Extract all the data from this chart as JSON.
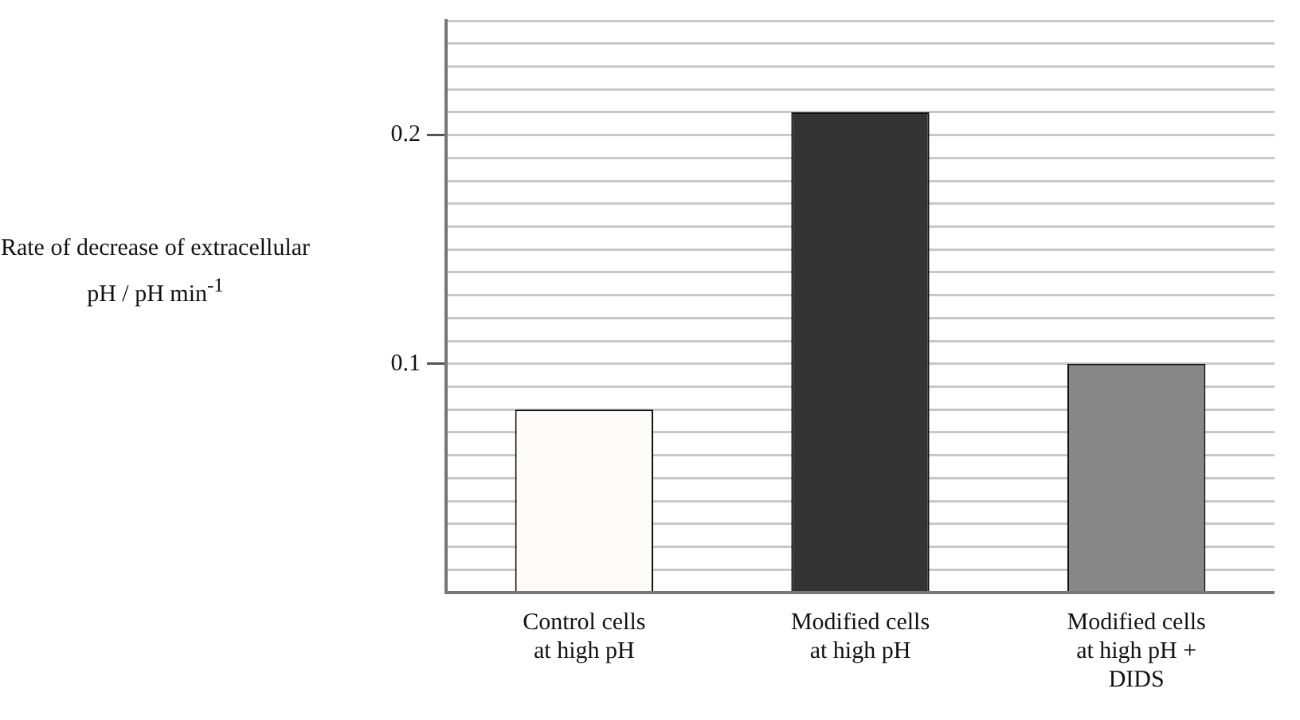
{
  "chart_data": {
    "type": "bar",
    "ylabel": "Rate of decrease of extracellular pH / pH min$^{-1}$",
    "categories": [
      "Control cells at high pH",
      "Modified cells at high pH",
      "Modified cells at high pH + DIDS"
    ],
    "values": [
      0.08,
      0.21,
      0.1
    ],
    "colors": [
      "#fdfcfb",
      "#333333",
      "#878787"
    ],
    "ylim": [
      0,
      0.25
    ],
    "yticks": [
      {
        "value": 0,
        "label": null
      },
      {
        "value": 0.01,
        "label": null
      },
      {
        "value": 0.02,
        "label": null
      },
      {
        "value": 0.03,
        "label": null
      },
      {
        "value": 0.04,
        "label": null
      },
      {
        "value": 0.05,
        "label": null
      },
      {
        "value": 0.06,
        "label": null
      },
      {
        "value": 0.07,
        "label": null
      },
      {
        "value": 0.08,
        "label": null
      },
      {
        "value": 0.09,
        "label": null
      },
      {
        "value": 0.1,
        "label": "0.1"
      },
      {
        "value": 0.11,
        "label": null
      },
      {
        "value": 0.12,
        "label": null
      },
      {
        "value": 0.13,
        "label": null
      },
      {
        "value": 0.14,
        "label": null
      },
      {
        "value": 0.15,
        "label": null
      },
      {
        "value": 0.16,
        "label": null
      },
      {
        "value": 0.17,
        "label": null
      },
      {
        "value": 0.18,
        "label": null
      },
      {
        "value": 0.19,
        "label": null
      },
      {
        "value": 0.2,
        "label": "0.2"
      },
      {
        "value": 0.21,
        "label": null
      },
      {
        "value": 0.22,
        "label": null
      },
      {
        "value": 0.23,
        "label": null
      },
      {
        "value": 0.24,
        "label": null
      },
      {
        "value": 0.25,
        "label": null
      }
    ],
    "grid": "y",
    "legend": false
  }
}
